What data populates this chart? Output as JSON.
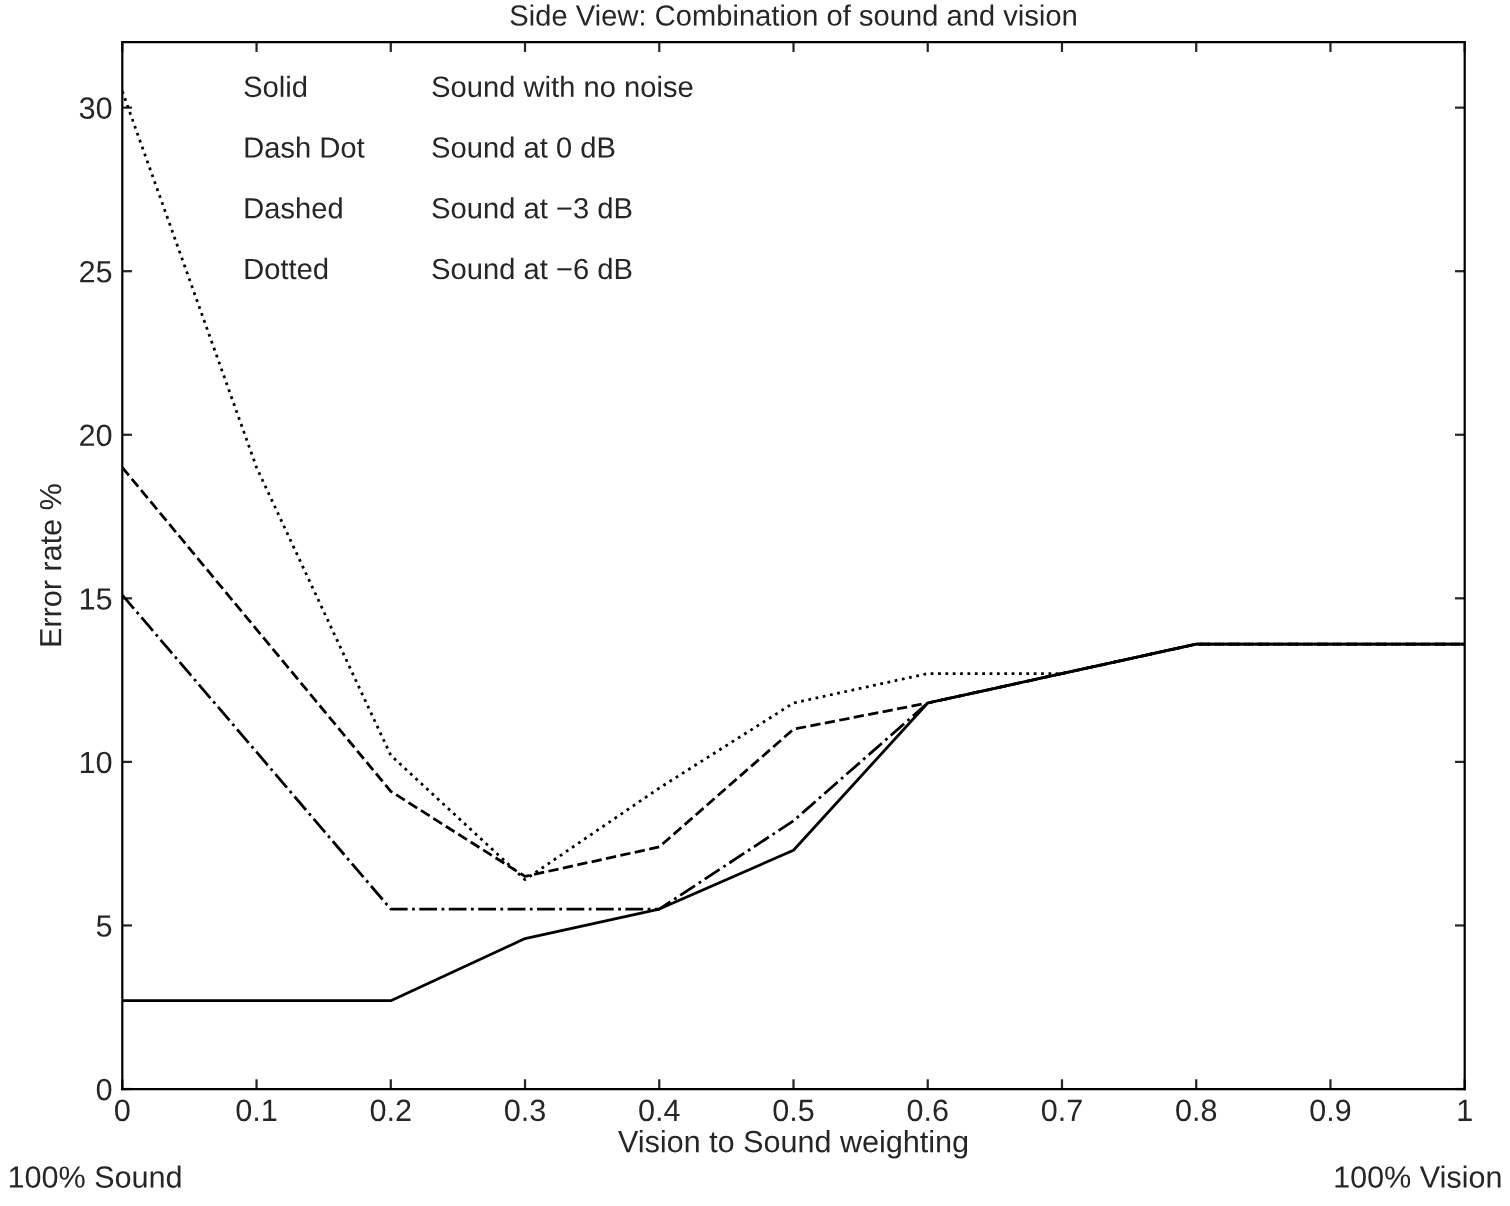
{
  "chart_data": {
    "type": "line",
    "title": "Side View: Combination of sound and vision",
    "xlabel": "Vision to Sound weighting",
    "ylabel": "Error rate %",
    "x": [
      0,
      0.2,
      0.3,
      0.4,
      0.5,
      0.6,
      0.8,
      1
    ],
    "series": [
      {
        "color": "#000000",
        "line_style": "solid",
        "values": [
          2.7,
          2.7,
          4.6,
          5.5,
          7.3,
          11.8,
          13.6,
          13.6
        ]
      },
      {
        "color": "#000000",
        "line_style": "dashdot",
        "values": [
          15.1,
          5.5,
          5.5,
          5.5,
          8.2,
          11.8,
          13.6,
          13.6
        ]
      },
      {
        "color": "#000000",
        "line_style": "dashed",
        "values": [
          19.0,
          9.1,
          6.5,
          7.4,
          11.0,
          11.8,
          13.6,
          13.6
        ]
      },
      {
        "color": "#000000",
        "line_style": "dotted",
        "x": [
          0,
          0.1,
          0.2,
          0.3,
          0.4,
          0.5,
          0.6,
          0.7,
          0.8,
          1
        ],
        "values": [
          30.5,
          19.0,
          10.2,
          6.4,
          9.2,
          11.8,
          12.7,
          12.7,
          13.6,
          13.6
        ]
      }
    ],
    "annotations": [
      "Solid",
      "Sound with no noise",
      "Dash Dot",
      "Sound at 0 dB",
      "Dashed",
      "Sound at −3 dB",
      "Dotted",
      "Sound at −6 dB",
      "100% Sound",
      "100% Vision"
    ],
    "xlim": [
      0,
      1
    ],
    "xticks": [
      0,
      0.1,
      0.2,
      0.3,
      0.4,
      0.5,
      0.6,
      0.7,
      0.8,
      0.9,
      1
    ],
    "ylim": [
      0,
      32
    ],
    "yticks": [
      0,
      5,
      10,
      15,
      20,
      25,
      30
    ],
    "grid": false,
    "legend": false,
    "marker": "none"
  }
}
